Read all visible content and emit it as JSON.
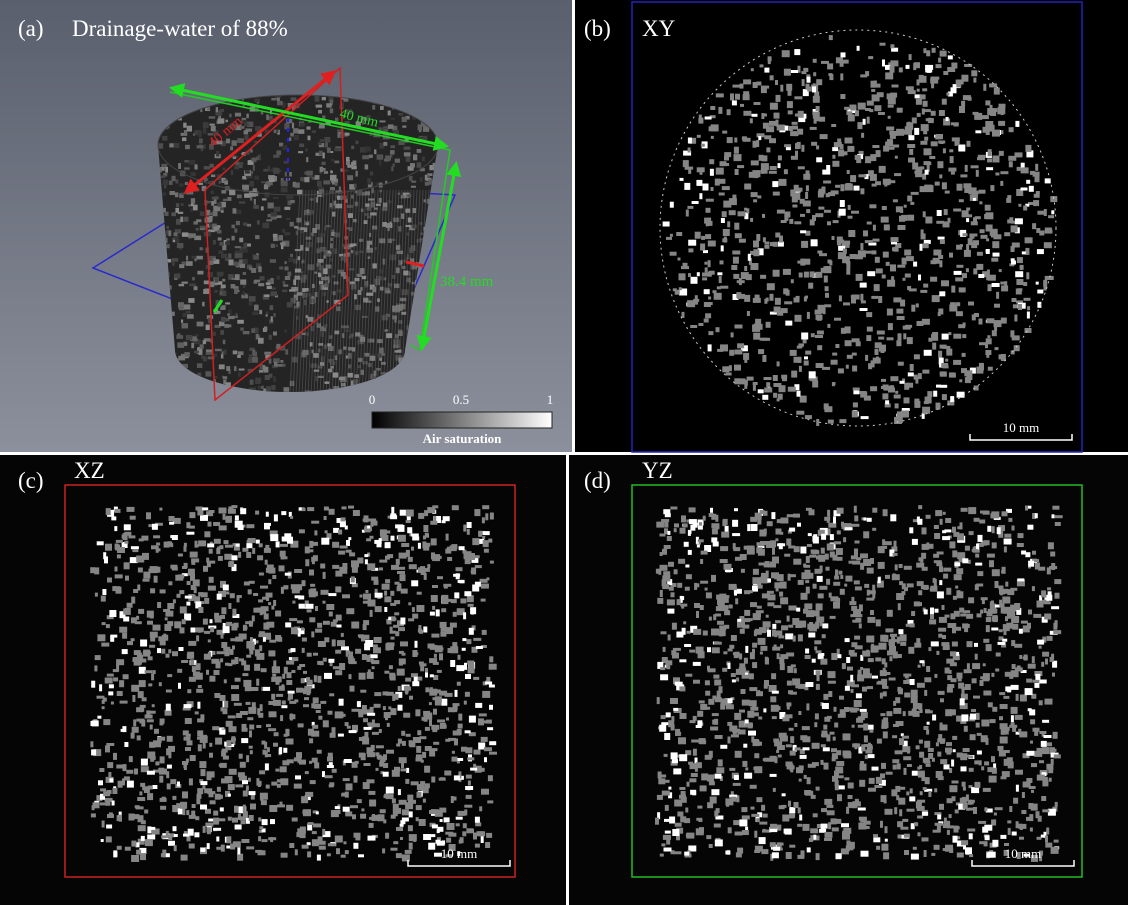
{
  "panels": [
    {
      "label": "(a)",
      "title": "Drainage-water of 88%",
      "dimensions": [
        "40 mm",
        "40 mm",
        "38.4 mm"
      ],
      "colorbar": {
        "ticks": [
          "0",
          "0.5",
          "1"
        ],
        "label": "Air saturation"
      }
    },
    {
      "label": "(b)",
      "title": "XY",
      "scale_bar": "10 mm"
    },
    {
      "label": "(c)",
      "title": "XZ",
      "scale_bar": "10 mm"
    },
    {
      "label": "(d)",
      "title": "YZ",
      "scale_bar": "10 mm"
    }
  ]
}
